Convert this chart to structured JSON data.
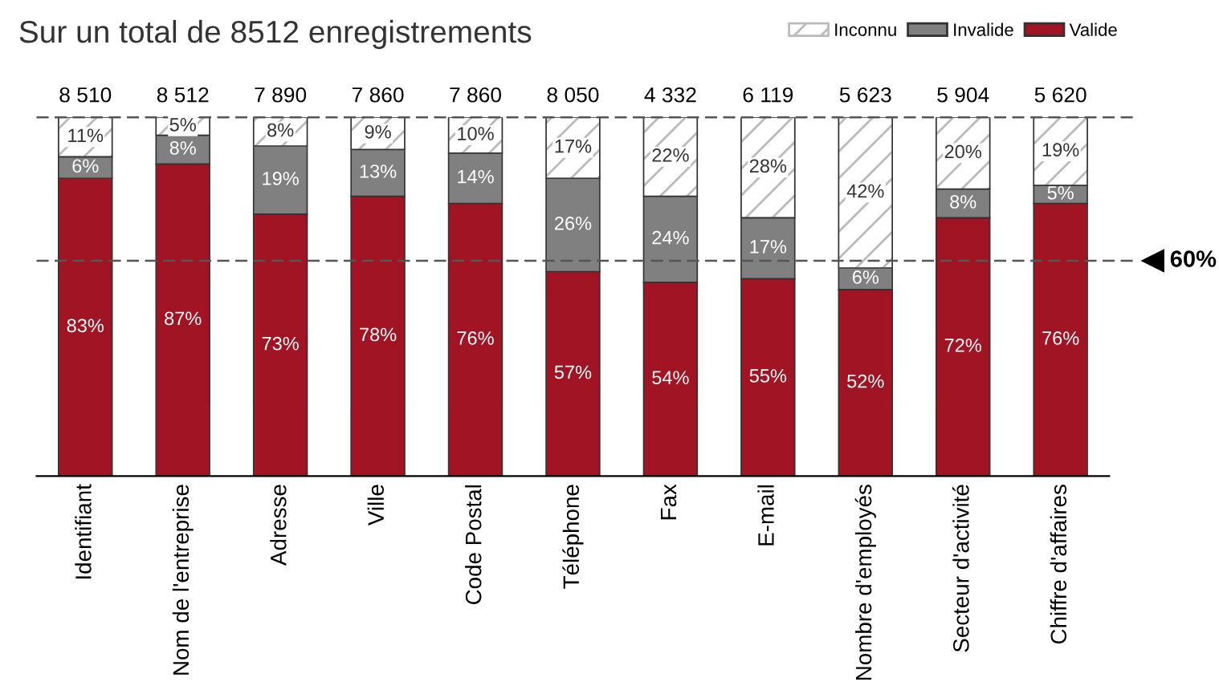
{
  "chart_data": {
    "type": "bar",
    "title": "Sur un total de 8512 enregistrements",
    "stacked": true,
    "categories": [
      "Identifiant",
      "Nom de l'entreprise",
      "Adresse",
      "Ville",
      "Code Postal",
      "Téléphone",
      "Fax",
      "E-mail",
      "Nombre d'employés",
      "Secteur d'activité",
      "Chiffre d'affaires"
    ],
    "series": [
      {
        "name": "Valide",
        "color": "#a01423",
        "values": [
          83,
          87,
          73,
          78,
          76,
          57,
          54,
          55,
          52,
          72,
          76
        ],
        "value_labels": [
          "83%",
          "87%",
          "73%",
          "78%",
          "76%",
          "57%",
          "54%",
          "55%",
          "52%",
          "72%",
          "76%"
        ]
      },
      {
        "name": "Invalide",
        "color": "#808080",
        "values": [
          6,
          8,
          19,
          13,
          14,
          26,
          24,
          17,
          6,
          8,
          5
        ],
        "value_labels": [
          "6%",
          "8%",
          "19%",
          "13%",
          "14%",
          "26%",
          "24%",
          "17%",
          "6%",
          "8%",
          "5%"
        ]
      },
      {
        "name": "Inconnu",
        "color": "#bbbbbb",
        "values": [
          11,
          5,
          8,
          9,
          10,
          17,
          22,
          28,
          42,
          20,
          19
        ],
        "value_labels": [
          "11%",
          "5%",
          "8%",
          "9%",
          "10%",
          "17%",
          "22%",
          "28%",
          "42%",
          "20%",
          "19%"
        ]
      }
    ],
    "annotations": [
      "8 510",
      "8 512",
      "7 890",
      "7 860",
      "7 860",
      "8 050",
      "4 332",
      "6 119",
      "5 623",
      "5 904",
      "5 620"
    ],
    "ylim": [
      0,
      100
    ],
    "tick_labels": "x",
    "legend": "top right",
    "ref_lines": [
      {
        "axis": "y",
        "value": 100,
        "label": null,
        "line_style": "dashed"
      },
      {
        "axis": "y",
        "value": 60,
        "label": "60%",
        "line_style": "dashed"
      }
    ]
  }
}
